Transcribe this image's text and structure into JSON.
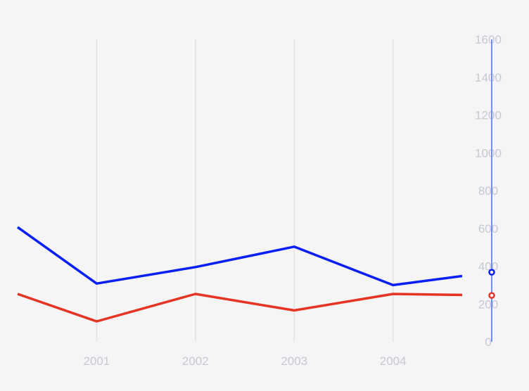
{
  "chart_data": {
    "type": "line",
    "x": [
      2000.2,
      2001,
      2002,
      2003,
      2004,
      2004.7
    ],
    "x_ticks": [
      "2001",
      "2002",
      "2003",
      "2004"
    ],
    "x_tick_values": [
      2001,
      2002,
      2003,
      2004
    ],
    "xlim": [
      2000.2,
      2004.7
    ],
    "y_ticks": [
      "0",
      "200",
      "400",
      "600",
      "800",
      "1000",
      "1200",
      "1400",
      "1600"
    ],
    "ylim": [
      0,
      1600
    ],
    "yaxis_side": "right",
    "grid": "vertical",
    "series": [
      {
        "color": "#0a1ff5",
        "values": [
          606,
          308,
          395,
          503,
          300,
          348
        ],
        "marker_value": 368
      },
      {
        "color": "#e53424",
        "values": [
          253,
          108,
          253,
          166,
          253,
          248
        ],
        "marker_value": 245
      }
    ]
  },
  "colors": {
    "background": "#f5f5f5",
    "grid": "#e2e2e2",
    "tick_label": "#c5c9d3",
    "cursor_line": "#6e8ff5"
  }
}
